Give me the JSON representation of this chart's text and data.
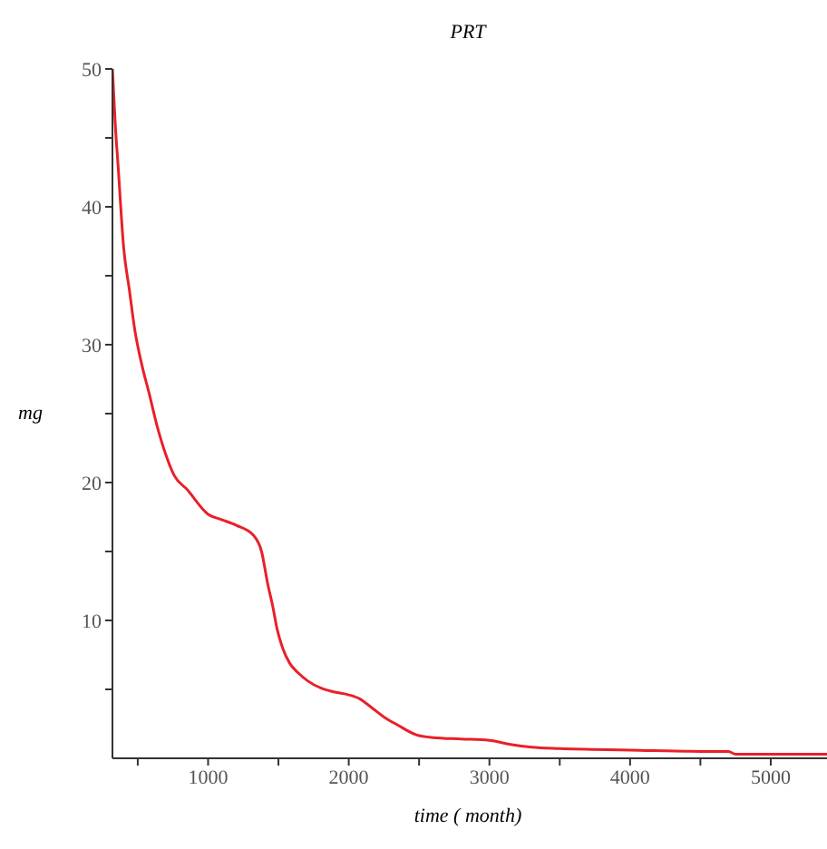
{
  "chart_data": {
    "type": "line",
    "title": "PRT",
    "xlabel": "time ( month)",
    "ylabel": "mg",
    "series": [
      {
        "color": "#e8202a",
        "x": [
          320,
          330,
          340,
          360,
          400,
          440,
          480,
          530,
          580,
          640,
          700,
          760,
          850,
          1000,
          1100,
          1200,
          1320,
          1380,
          1425,
          1460,
          1490,
          1530,
          1580,
          1640,
          1710,
          1800,
          1900,
          2000,
          2080,
          2160,
          2250,
          2350,
          2480,
          2600,
          2800,
          3000,
          3150,
          3300,
          3500,
          4000,
          4500,
          4700,
          4750,
          5000,
          5400
        ],
        "values": [
          50,
          48,
          46,
          43,
          37,
          34,
          31,
          28.5,
          26.5,
          24,
          22,
          20.5,
          19.5,
          17.7,
          17.3,
          16.9,
          16.2,
          15,
          12.6,
          11,
          9.4,
          8,
          6.9,
          6.2,
          5.6,
          5.1,
          4.8,
          4.6,
          4.3,
          3.7,
          3,
          2.4,
          1.7,
          1.5,
          1.4,
          1.3,
          1,
          0.8,
          0.7,
          0.6,
          0.5,
          0.5,
          0.3,
          0.3,
          0.3
        ]
      }
    ],
    "xlim": [
      320,
      5400
    ],
    "ylim": [
      0,
      50
    ],
    "xticks": [
      {
        "value": 500,
        "label": null
      },
      1000,
      {
        "value": 1500,
        "label": null
      },
      2000,
      {
        "value": 2500,
        "label": null
      },
      3000,
      {
        "value": 3500,
        "label": null
      },
      4000,
      {
        "value": 4500,
        "label": null
      },
      5000
    ],
    "yticks": [
      {
        "value": 5,
        "label": null
      },
      10,
      {
        "value": 15,
        "label": null
      },
      20,
      {
        "value": 25,
        "label": null
      },
      30,
      {
        "value": 35,
        "label": null
      },
      40,
      {
        "value": 45,
        "label": null
      },
      50
    ],
    "grid": false,
    "legend": false,
    "marker": "none",
    "line_style": "solid"
  }
}
